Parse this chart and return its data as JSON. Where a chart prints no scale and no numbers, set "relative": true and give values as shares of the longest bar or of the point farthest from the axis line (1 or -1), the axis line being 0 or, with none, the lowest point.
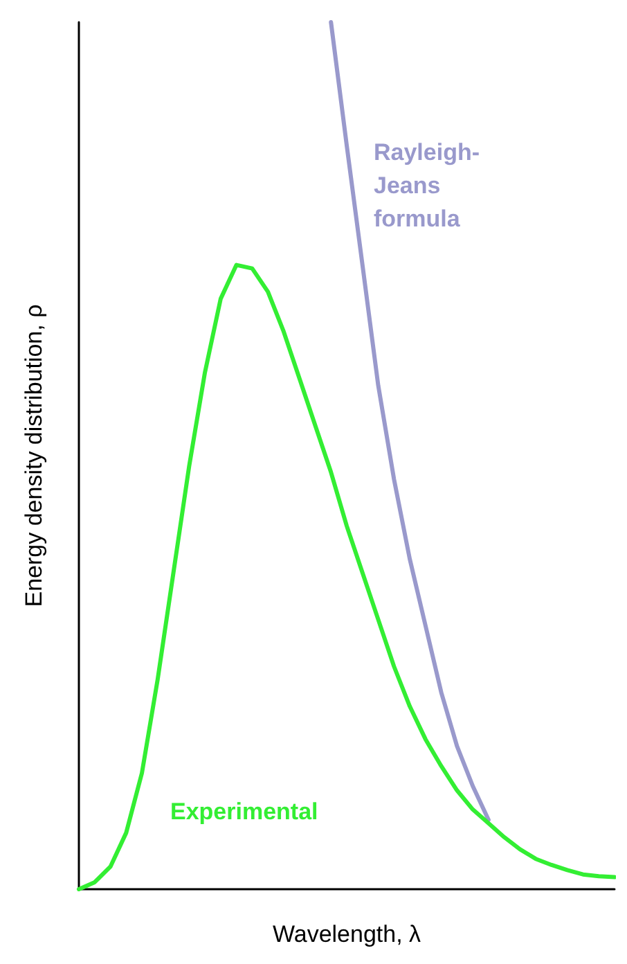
{
  "chart_data": {
    "type": "line",
    "relative": true,
    "xlabel": "Wavelength, λ",
    "ylabel": "Energy density distribution, ρ",
    "legend": false,
    "grid": false,
    "tick_labels": false,
    "marker": "none",
    "line_style": "solid",
    "categories": [
      null,
      null,
      null,
      null,
      null,
      null,
      null,
      null,
      null,
      null,
      null,
      null,
      null,
      null,
      null,
      null,
      null,
      null,
      null,
      null,
      null,
      null,
      null,
      null,
      null,
      null,
      null,
      null,
      null,
      null,
      null,
      null,
      null,
      null,
      null
    ],
    "series": [
      {
        "name": "Rayleigh-Jeans formula",
        "color": "#9999cc",
        "values": [
          null,
          null,
          null,
          null,
          null,
          null,
          null,
          null,
          null,
          null,
          null,
          null,
          null,
          null,
          null,
          null,
          1,
          0.858,
          0.72,
          0.581,
          0.473,
          0.381,
          0.304,
          0.227,
          0.165,
          0.119,
          0.08,
          null,
          null,
          null,
          null,
          null,
          null,
          null,
          null
        ]
      },
      {
        "name": "Experimental",
        "color": "#33ee33",
        "values": [
          0,
          0.008,
          0.026,
          0.065,
          0.134,
          0.242,
          0.365,
          0.488,
          0.596,
          0.681,
          0.72,
          0.716,
          0.689,
          0.643,
          0.589,
          0.535,
          0.481,
          0.419,
          0.365,
          0.311,
          0.257,
          0.211,
          0.173,
          0.142,
          0.114,
          0.092,
          0.076,
          0.06,
          0.046,
          0.035,
          0.028,
          0.022,
          0.017,
          0.015,
          0.014
        ]
      }
    ]
  }
}
